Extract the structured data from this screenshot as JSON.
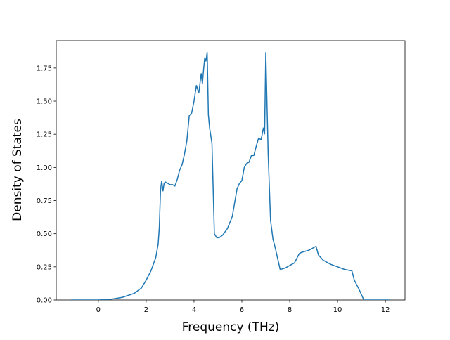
{
  "chart_data": {
    "type": "line",
    "xlabel": "Frequency (THz)",
    "ylabel": "Density of States",
    "x": [
      -1.14,
      0,
      0.5,
      1,
      1.5,
      1.8,
      2,
      2.2,
      2.4,
      2.5,
      2.55,
      2.6,
      2.65,
      2.7,
      2.75,
      2.8,
      2.9,
      3,
      3.1,
      3.2,
      3.3,
      3.4,
      3.5,
      3.6,
      3.7,
      3.8,
      3.9,
      4.0,
      4.1,
      4.2,
      4.3,
      4.35,
      4.4,
      4.45,
      4.5,
      4.55,
      4.6,
      4.65,
      4.75,
      4.85,
      4.95,
      5.05,
      5.2,
      5.4,
      5.6,
      5.8,
      5.9,
      6.0,
      6.1,
      6.2,
      6.3,
      6.4,
      6.5,
      6.6,
      6.7,
      6.8,
      6.85,
      6.9,
      6.95,
      7.0,
      7.1,
      7.2,
      7.3,
      7.4,
      7.5,
      7.6,
      7.7,
      7.8,
      8.0,
      8.2,
      8.4,
      8.5,
      8.8,
      9.1,
      9.2,
      9.4,
      9.7,
      10.0,
      10.3,
      10.6,
      10.7,
      10.9,
      11.0,
      11.1,
      11.5,
      12.2
    ],
    "series": [
      {
        "color": "#1f77b4",
        "values": [
          0,
          0,
          0.005,
          0.02,
          0.05,
          0.09,
          0.15,
          0.22,
          0.32,
          0.42,
          0.55,
          0.83,
          0.9,
          0.82,
          0.88,
          0.89,
          0.88,
          0.87,
          0.87,
          0.86,
          0.91,
          0.98,
          1.02,
          1.1,
          1.2,
          1.39,
          1.41,
          1.5,
          1.62,
          1.56,
          1.71,
          1.63,
          1.74,
          1.83,
          1.8,
          1.87,
          1.4,
          1.3,
          1.18,
          0.5,
          0.47,
          0.47,
          0.49,
          0.54,
          0.63,
          0.84,
          0.88,
          0.9,
          1.0,
          1.03,
          1.04,
          1.09,
          1.09,
          1.16,
          1.22,
          1.21,
          1.25,
          1.3,
          1.25,
          1.87,
          1.1,
          0.6,
          0.46,
          0.39,
          0.31,
          0.23,
          0.235,
          0.24,
          0.26,
          0.28,
          0.35,
          0.36,
          0.375,
          0.405,
          0.34,
          0.3,
          0.27,
          0.25,
          0.23,
          0.22,
          0.15,
          0.08,
          0.04,
          0,
          0,
          0
        ]
      }
    ],
    "xlim": [
      -1.76,
      12.82
    ],
    "ylim": [
      0,
      1.956
    ],
    "xticks": [
      0,
      2,
      4,
      6,
      8,
      10,
      12
    ],
    "yticks": [
      {
        "value": 0,
        "label": "0.00"
      },
      {
        "value": 0.25,
        "label": "0.25"
      },
      {
        "value": 0.5,
        "label": "0.50"
      },
      {
        "value": 0.75,
        "label": "0.75"
      },
      {
        "value": 1,
        "label": "1.00"
      },
      {
        "value": 1.25,
        "label": "1.25"
      },
      {
        "value": 1.5,
        "label": "1.50"
      },
      {
        "value": 1.75,
        "label": "1.75"
      }
    ]
  }
}
